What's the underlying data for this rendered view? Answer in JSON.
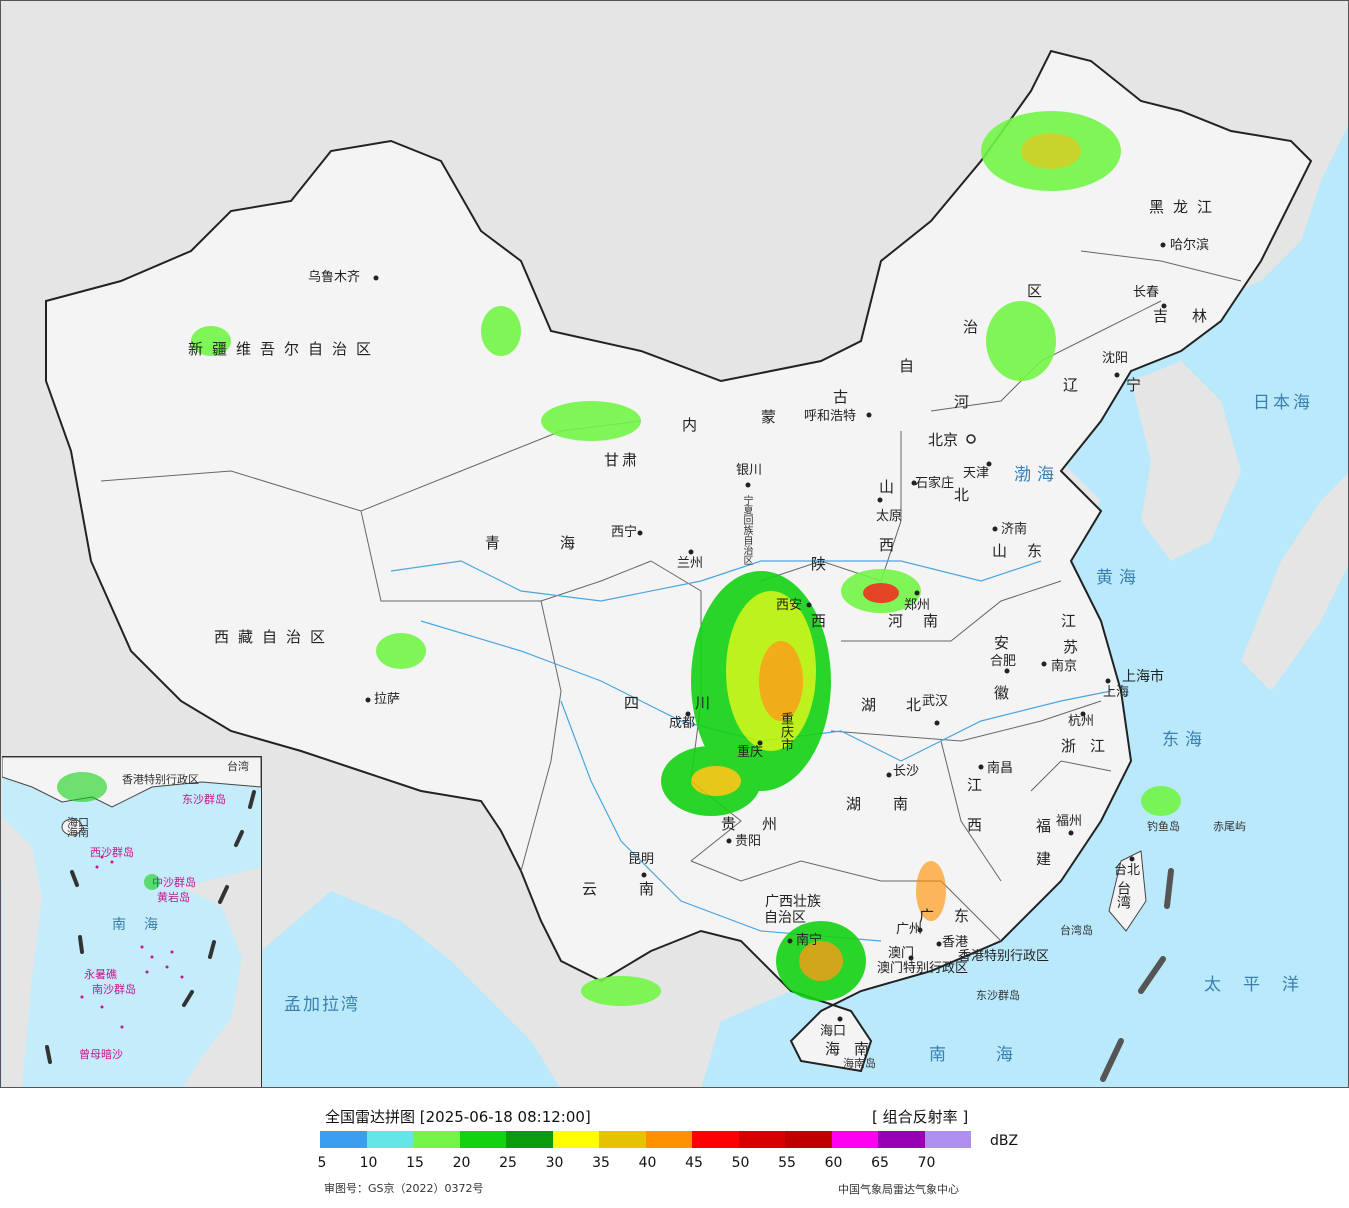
{
  "map": {
    "provinces": [
      {
        "key": "xinjiang",
        "text": "新疆维吾尔自治区"
      },
      {
        "key": "xizang",
        "text": "西藏自治区"
      },
      {
        "key": "qinghai",
        "text": "青海"
      },
      {
        "key": "gansu",
        "text": "甘肃"
      },
      {
        "key": "neimenggu_1",
        "text": "内"
      },
      {
        "key": "neimenggu_2",
        "text": "蒙"
      },
      {
        "key": "neimenggu_3",
        "text": "古"
      },
      {
        "key": "neimenggu_4",
        "text": "自"
      },
      {
        "key": "neimenggu_5",
        "text": "治"
      },
      {
        "key": "neimenggu_6",
        "text": "区"
      },
      {
        "key": "heilongjiang",
        "text": "黑龙江"
      },
      {
        "key": "jilin",
        "text": "吉林"
      },
      {
        "key": "liaoning",
        "text": "辽宁"
      },
      {
        "key": "hebei_1",
        "text": "河"
      },
      {
        "key": "hebei_2",
        "text": "北"
      },
      {
        "key": "shanxi_1",
        "text": "山"
      },
      {
        "key": "shanxi_2",
        "text": "西"
      },
      {
        "key": "shaanxi_1",
        "text": "陕"
      },
      {
        "key": "shaanxi_2",
        "text": "西"
      },
      {
        "key": "shandong",
        "text": "山东"
      },
      {
        "key": "henan",
        "text": "河南"
      },
      {
        "key": "jiangsu_1",
        "text": "江"
      },
      {
        "key": "jiangsu_2",
        "text": "苏"
      },
      {
        "key": "anhui_1",
        "text": "安"
      },
      {
        "key": "anhui_2",
        "text": "徽"
      },
      {
        "key": "hubei",
        "text": "湖北"
      },
      {
        "key": "sichuan_1",
        "text": "四"
      },
      {
        "key": "sichuan_2",
        "text": "川"
      },
      {
        "key": "chongqing",
        "text": "重庆市"
      },
      {
        "key": "guizhou",
        "text": "贵州"
      },
      {
        "key": "yunnan",
        "text": "云南"
      },
      {
        "key": "hunan",
        "text": "湖南"
      },
      {
        "key": "jiangxi_1",
        "text": "江"
      },
      {
        "key": "jiangxi_2",
        "text": "西"
      },
      {
        "key": "zhejiang",
        "text": "浙江"
      },
      {
        "key": "fujian_1",
        "text": "福"
      },
      {
        "key": "fujian_2",
        "text": "建"
      },
      {
        "key": "guangdong",
        "text": "广东"
      },
      {
        "key": "guangxi_1",
        "text": "广西壮族"
      },
      {
        "key": "guangxi_2",
        "text": "自治区"
      },
      {
        "key": "hainan",
        "text": "海南"
      },
      {
        "key": "taiwan",
        "text": "台湾"
      },
      {
        "key": "ningxia",
        "text": "宁夏回族自治区"
      },
      {
        "key": "shanghai",
        "text": "上海市"
      },
      {
        "key": "hk",
        "text": "香港特别行政区"
      },
      {
        "key": "macau",
        "text": "澳门特别行政区"
      }
    ],
    "cities": [
      {
        "key": "urumqi",
        "text": "乌鲁木齐"
      },
      {
        "key": "lhasa",
        "text": "拉萨"
      },
      {
        "key": "xining",
        "text": "西宁"
      },
      {
        "key": "lanzhou",
        "text": "兰州"
      },
      {
        "key": "yinchuan",
        "text": "银川"
      },
      {
        "key": "hohhot",
        "text": "呼和浩特"
      },
      {
        "key": "beijing",
        "text": "北京"
      },
      {
        "key": "tianjin",
        "text": "天津"
      },
      {
        "key": "shijiazhuang",
        "text": "石家庄"
      },
      {
        "key": "taiyuan",
        "text": "太原"
      },
      {
        "key": "jinan",
        "text": "济南"
      },
      {
        "key": "zhengzhou",
        "text": "郑州"
      },
      {
        "key": "xian",
        "text": "西安"
      },
      {
        "key": "nanjing",
        "text": "南京"
      },
      {
        "key": "hefei",
        "text": "合肥"
      },
      {
        "key": "shanghai_c",
        "text": "上海"
      },
      {
        "key": "hangzhou",
        "text": "杭州"
      },
      {
        "key": "wuhan",
        "text": "武汉"
      },
      {
        "key": "changsha",
        "text": "长沙"
      },
      {
        "key": "nanchang",
        "text": "南昌"
      },
      {
        "key": "fuzhou",
        "text": "福州"
      },
      {
        "key": "taibei",
        "text": "台北"
      },
      {
        "key": "chengdu",
        "text": "成都"
      },
      {
        "key": "chongqing_c",
        "text": "重庆"
      },
      {
        "key": "guiyang",
        "text": "贵阳"
      },
      {
        "key": "kunming",
        "text": "昆明"
      },
      {
        "key": "nanning",
        "text": "南宁"
      },
      {
        "key": "guangzhou",
        "text": "广州"
      },
      {
        "key": "hongkong",
        "text": "香港"
      },
      {
        "key": "macao",
        "text": "澳门"
      },
      {
        "key": "haikou",
        "text": "海口"
      },
      {
        "key": "shenyang",
        "text": "沈阳"
      },
      {
        "key": "changchun",
        "text": "长春"
      },
      {
        "key": "harbin",
        "text": "哈尔滨"
      }
    ],
    "seas": [
      {
        "key": "bohai",
        "text": "渤海"
      },
      {
        "key": "huanghai",
        "text": "黄海"
      },
      {
        "key": "donghai",
        "text": "东海"
      },
      {
        "key": "nanhai",
        "text": "南海"
      },
      {
        "key": "ribenhai",
        "text": "日本海"
      },
      {
        "key": "taipingyang",
        "text": "太平洋"
      },
      {
        "key": "mengjiala",
        "text": "孟加拉湾"
      }
    ],
    "islands": [
      {
        "key": "hainandao",
        "text": "海南岛"
      },
      {
        "key": "taiwandao",
        "text": "台湾岛"
      },
      {
        "key": "dongsha",
        "text": "东沙群岛"
      },
      {
        "key": "diaoyu",
        "text": "钓鱼岛"
      },
      {
        "key": "chiwei",
        "text": "赤尾屿"
      }
    ]
  },
  "inset": {
    "labels": [
      {
        "key": "haikou",
        "text": "海口"
      },
      {
        "key": "hainan",
        "text": "海南"
      },
      {
        "key": "xisha",
        "text": "西沙群岛"
      },
      {
        "key": "zhongsha",
        "text": "中沙群岛"
      },
      {
        "key": "huangyan",
        "text": "黄岩岛"
      },
      {
        "key": "nanhai",
        "text": "南海"
      },
      {
        "key": "nansha",
        "text": "南沙群岛"
      },
      {
        "key": "yongshu",
        "text": "永暑礁"
      },
      {
        "key": "zengmu",
        "text": "曾母暗沙"
      },
      {
        "key": "taiwan",
        "text": "台湾"
      },
      {
        "key": "dongsha",
        "text": "东沙群岛"
      },
      {
        "key": "hk",
        "text": "香港特别行政区"
      }
    ]
  },
  "legend": {
    "title": "全国雷达拼图 [2025-06-18 08:12:00]",
    "product": "[ 组合反射率 ]",
    "unit": "dBZ",
    "colors": [
      "#3c9ef0",
      "#64e6e6",
      "#72f546",
      "#12d212",
      "#0b9a0b",
      "#ffff00",
      "#e6c200",
      "#ff9000",
      "#ff0000",
      "#d60000",
      "#c00000",
      "#ff00f0",
      "#9600b4",
      "#ad90f0"
    ],
    "ticks": [
      "5",
      "10",
      "15",
      "20",
      "25",
      "30",
      "35",
      "40",
      "45",
      "50",
      "55",
      "60",
      "65",
      "70"
    ],
    "approval": "审图号：GS京（2022）0372号",
    "credit": "中国气象局雷达气象中心"
  },
  "colors": {
    "sea": "#b9e9fb",
    "land_foreign": "#e5e5e5",
    "land_china": "#f4f4f4",
    "river": "#4aa6e0"
  }
}
